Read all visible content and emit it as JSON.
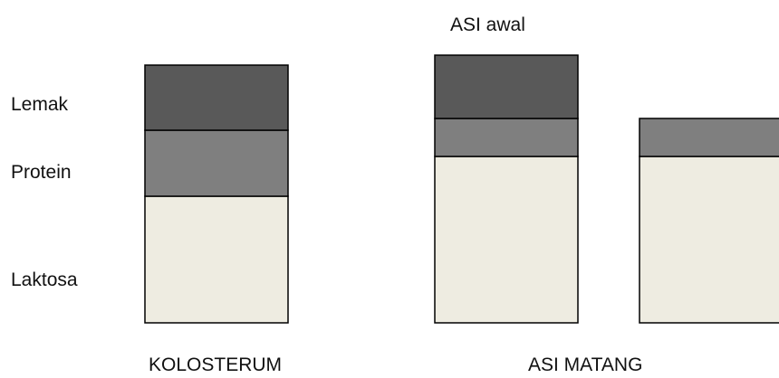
{
  "chart_data": {
    "type": "bar",
    "stacked": true,
    "components": [
      "Lemak",
      "Protein",
      "Laktosa"
    ],
    "bars": [
      {
        "segments": {
          "Laktosa": 140,
          "Protein": 73,
          "Lemak": 72
        }
      },
      {
        "segments": {
          "Laktosa": 184,
          "Protein": 42,
          "Lemak": 70
        }
      },
      {
        "segments": {
          "Laktosa": 184,
          "Protein": 42,
          "Lemak": 0
        }
      }
    ],
    "group_labels": [
      "KOLOSTERUM",
      "ASI MATANG"
    ],
    "annotations": [
      "ASI awal"
    ],
    "colors": {
      "Lemak": "#595959",
      "Protein": "#7f7f7f",
      "Laktosa": "#eeece1",
      "outline": "#000000"
    }
  }
}
